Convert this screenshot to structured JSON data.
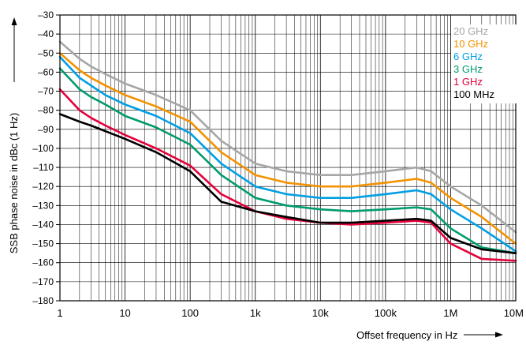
{
  "chart_data": {
    "type": "line",
    "title": "",
    "xlabel": "Offset frequency in Hz",
    "ylabel": "SSB phase noise in dBc (1 Hz)",
    "x_scale": "log",
    "xlim": [
      1,
      10000000
    ],
    "ylim": [
      -180,
      -30
    ],
    "x_ticks": [
      1,
      10,
      100,
      1000,
      10000,
      100000,
      1000000,
      10000000
    ],
    "x_tick_labels": [
      "1",
      "10",
      "100",
      "1k",
      "10k",
      "100k",
      "1M",
      "10M"
    ],
    "y_ticks": [
      -30,
      -40,
      -50,
      -60,
      -70,
      -80,
      -90,
      -100,
      -110,
      -120,
      -130,
      -140,
      -150,
      -160,
      -170,
      -180
    ],
    "y_tick_labels": [
      "–30",
      "–40",
      "–50",
      "–60",
      "–70",
      "–80",
      "–90",
      "–100",
      "–110",
      "–120",
      "–130",
      "–140",
      "–150",
      "–160",
      "–170",
      "–180"
    ],
    "grid": true,
    "legend_position": "top-right",
    "series": [
      {
        "name": "20 GHz",
        "color": "#a6a6a6",
        "x": [
          1,
          2,
          3,
          5,
          10,
          30,
          100,
          300,
          1000,
          3000,
          10000,
          30000,
          100000,
          300000,
          500000,
          1000000,
          3000000,
          10000000
        ],
        "y": [
          -44,
          -53,
          -57,
          -61,
          -66,
          -72,
          -80,
          -96,
          -108,
          -112,
          -114,
          -114,
          -112,
          -110,
          -112,
          -120,
          -130,
          -144
        ]
      },
      {
        "name": "10 GHz",
        "color": "#f39200",
        "x": [
          1,
          2,
          3,
          5,
          10,
          30,
          100,
          300,
          1000,
          3000,
          10000,
          30000,
          100000,
          300000,
          500000,
          1000000,
          3000000,
          10000000
        ],
        "y": [
          -50,
          -59,
          -63,
          -67,
          -72,
          -78,
          -86,
          -102,
          -114,
          -118,
          -120,
          -120,
          -118,
          -116,
          -118,
          -126,
          -136,
          -150
        ]
      },
      {
        "name": "6 GHz",
        "color": "#009fe3",
        "x": [
          1,
          2,
          3,
          5,
          10,
          30,
          100,
          300,
          1000,
          3000,
          10000,
          30000,
          100000,
          300000,
          500000,
          1000000,
          3000000,
          10000000
        ],
        "y": [
          -52,
          -63,
          -67,
          -72,
          -77,
          -83,
          -92,
          -108,
          -120,
          -124,
          -126,
          -126,
          -124,
          -122,
          -124,
          -132,
          -142,
          -154
        ]
      },
      {
        "name": "3 GHz",
        "color": "#009b6e",
        "x": [
          1,
          2,
          3,
          5,
          10,
          30,
          100,
          300,
          1000,
          3000,
          10000,
          30000,
          100000,
          300000,
          500000,
          1000000,
          3000000,
          10000000
        ],
        "y": [
          -58,
          -69,
          -73,
          -77,
          -83,
          -89,
          -98,
          -114,
          -126,
          -130,
          -132,
          -133,
          -132,
          -131,
          -132,
          -142,
          -152,
          -155
        ]
      },
      {
        "name": "1 GHz",
        "color": "#e4003a",
        "x": [
          1,
          2,
          3,
          5,
          10,
          30,
          100,
          300,
          1000,
          3000,
          10000,
          30000,
          100000,
          300000,
          500000,
          1000000,
          3000000,
          10000000
        ],
        "y": [
          -69,
          -80,
          -84,
          -88,
          -93,
          -100,
          -109,
          -124,
          -133,
          -137,
          -139,
          -140,
          -139,
          -138,
          -139,
          -150,
          -158,
          -159
        ]
      },
      {
        "name": "100 MHz",
        "color": "#000000",
        "x": [
          1,
          2,
          3,
          5,
          10,
          30,
          100,
          300,
          1000,
          3000,
          10000,
          30000,
          100000,
          300000,
          500000,
          1000000,
          3000000,
          10000000
        ],
        "y": [
          -82,
          -86,
          -88,
          -91,
          -95,
          -102,
          -112,
          -128,
          -133,
          -136,
          -139,
          -139,
          -138,
          -137,
          -138,
          -147,
          -153,
          -155
        ]
      }
    ]
  }
}
